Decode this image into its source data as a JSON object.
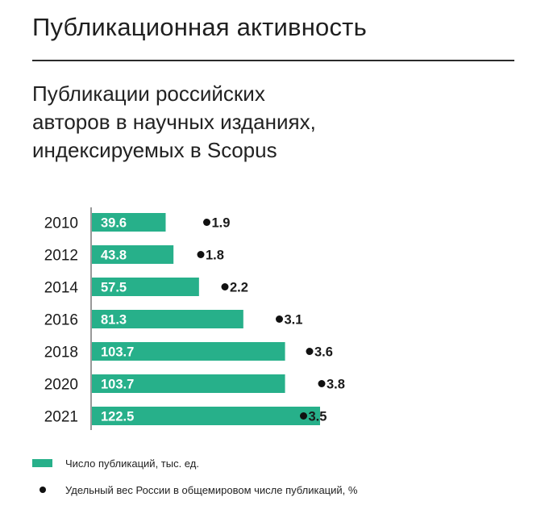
{
  "header": {
    "title": "Публикационная активность"
  },
  "chart_data": {
    "type": "bar",
    "subtitle": "Публикации российских авторов в научных изданиях, индексируемых в Scopus",
    "categories": [
      "2010",
      "2012",
      "2014",
      "2016",
      "2018",
      "2020",
      "2021"
    ],
    "series": [
      {
        "name": "Число публикаций, тыс. ед.",
        "kind": "bar",
        "color": "#27b08a",
        "values": [
          39.6,
          43.8,
          57.5,
          81.3,
          103.7,
          103.7,
          122.5
        ]
      },
      {
        "name": "Удельный вес России в общемировом числе публикаций, %",
        "kind": "dot",
        "color": "#111111",
        "values": [
          1.9,
          1.8,
          2.2,
          3.1,
          3.6,
          3.8,
          3.5
        ]
      }
    ],
    "orientation": "horizontal",
    "grid": false,
    "legend_position": "bottom-left"
  }
}
